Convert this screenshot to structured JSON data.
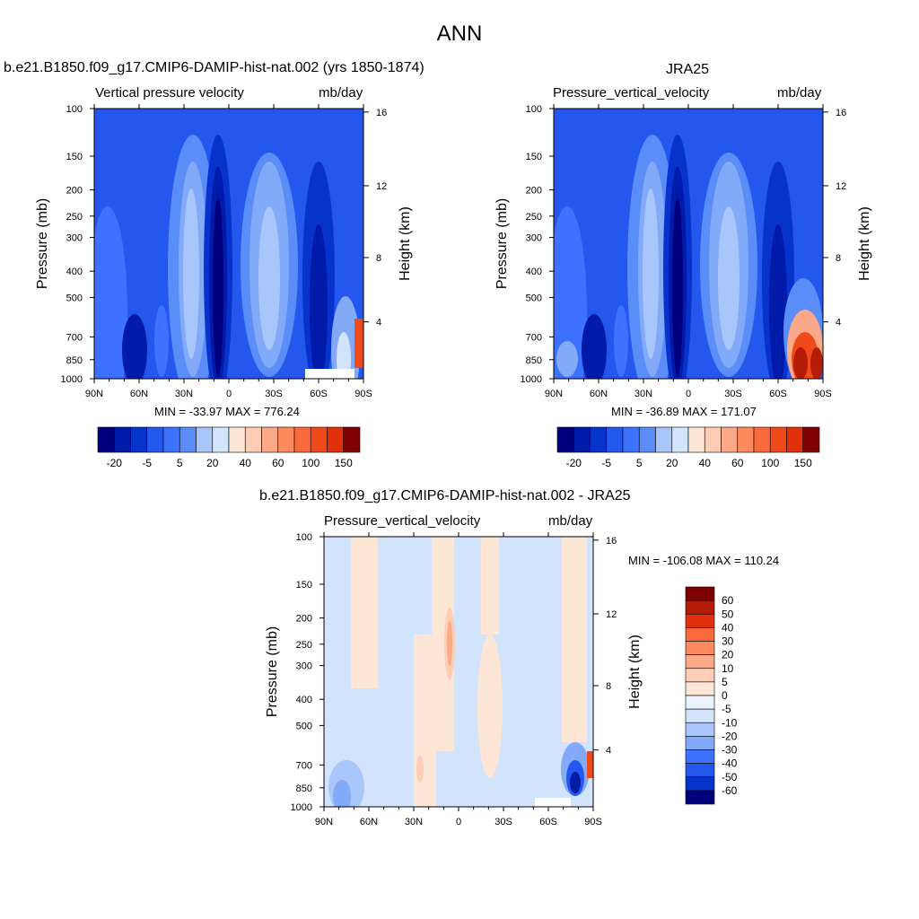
{
  "main_title": "ANN",
  "colors": {
    "blues": [
      "#00007e",
      "#001aaa",
      "#0733cc",
      "#2457ee",
      "#3d71ff",
      "#5b8df8",
      "#82aaf9",
      "#a9c6fb",
      "#d2e4fc"
    ],
    "zero": "#eaf2fd",
    "reds": [
      "#fde6d6",
      "#fdcdb5",
      "#fca98a",
      "#fb8a5f",
      "#f96a3a",
      "#f14a1a",
      "#e0300c",
      "#b51c07",
      "#7f0000"
    ]
  },
  "chart_data": [
    {
      "type": "heatmap",
      "title": "b.e21.B1850.f09_g17.CMIP6-DAMIP-hist-nat.002 (yrs 1850-1874)",
      "variable_label": "Vertical pressure velocity",
      "units": "mb/day",
      "xlabel": "",
      "ylabel": "Pressure (mb)",
      "y2label": "Height (km)",
      "x_ticks": [
        "90N",
        "60N",
        "30N",
        "0",
        "30S",
        "60S",
        "90S"
      ],
      "y_ticks": [
        100,
        150,
        200,
        250,
        300,
        400,
        500,
        700,
        850,
        1000
      ],
      "y_range": [
        100,
        1000
      ],
      "y_scale": "log",
      "y2_ticks": [
        4,
        8,
        12,
        16
      ],
      "min": -33.97,
      "max": 776.24,
      "minmax_text": "MIN = -33.97  MAX = 776.24",
      "colorbar_labels": [
        "-20",
        "-5",
        "5",
        "20",
        "40",
        "60",
        "100",
        "150"
      ],
      "colorbar_orientation": "horizontal",
      "features": "mostly negative (ascent, blue) with strongest ascent near 10N; positive values near surface at high southern latitudes"
    },
    {
      "type": "heatmap",
      "title": "JRA25",
      "variable_label": "Pressure_vertical_velocity",
      "units": "mb/day",
      "ylabel": "Pressure (mb)",
      "y2label": "Height (km)",
      "x_ticks": [
        "90N",
        "60N",
        "30N",
        "0",
        "30S",
        "60S",
        "90S"
      ],
      "y_ticks": [
        100,
        150,
        200,
        250,
        300,
        400,
        500,
        700,
        850,
        1000
      ],
      "y_range": [
        100,
        1000
      ],
      "y_scale": "log",
      "y2_ticks": [
        4,
        8,
        12,
        16
      ],
      "min": -36.89,
      "max": 171.07,
      "minmax_text": "MIN = -36.89  MAX = 171.07",
      "colorbar_labels": [
        "-20",
        "-5",
        "5",
        "20",
        "40",
        "60",
        "100",
        "150"
      ],
      "colorbar_orientation": "horizontal"
    },
    {
      "type": "heatmap",
      "title": "b.e21.B1850.f09_g17.CMIP6-DAMIP-hist-nat.002 - JRA25",
      "variable_label": "Pressure_vertical_velocity",
      "units": "mb/day",
      "ylabel": "Pressure (mb)",
      "y2label": "Height (km)",
      "x_ticks": [
        "90N",
        "60N",
        "30N",
        "0",
        "30S",
        "60S",
        "90S"
      ],
      "y_ticks": [
        100,
        150,
        200,
        250,
        300,
        400,
        500,
        700,
        850,
        1000
      ],
      "y_range": [
        100,
        1000
      ],
      "y_scale": "log",
      "y2_ticks": [
        4,
        8,
        12,
        16
      ],
      "min": -106.08,
      "max": 110.24,
      "minmax_text": "MIN = -106.08  MAX = 110.24",
      "colorbar_labels": [
        "60",
        "50",
        "40",
        "30",
        "20",
        "10",
        "5",
        "0",
        "-5",
        "-10",
        "-20",
        "-30",
        "-40",
        "-50",
        "-60"
      ],
      "colorbar_orientation": "vertical"
    }
  ]
}
